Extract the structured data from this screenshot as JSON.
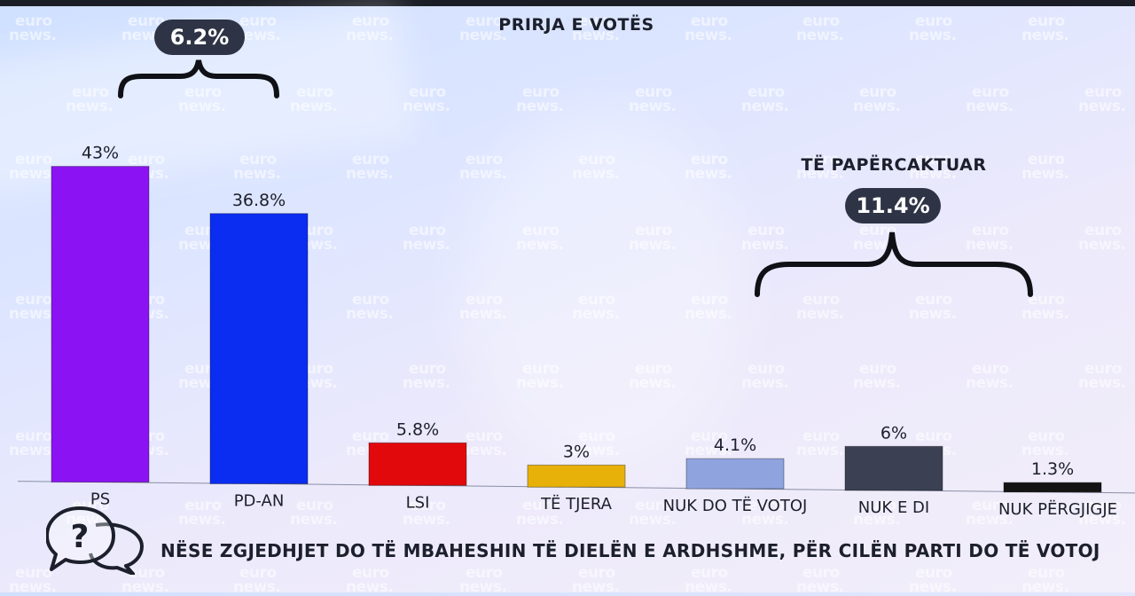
{
  "title": "PRIRJA E VOTËS",
  "watermark": {
    "line1": "euro",
    "line2": "news."
  },
  "question": "NËSE ZGJEDHJET DO TË MBAHESHIN TË DIELËN E ARDHSHME, PËR CILËN PARTI DO TË VOTOJ",
  "annotations": {
    "gap_label": "6.2%",
    "undecided_title": "TË PAPËRCAKTUAR",
    "undecided_value": "11.4%"
  },
  "icons": {
    "question": "question-speech-bubble-icon"
  },
  "chart_data": {
    "type": "bar",
    "title": "PRIRJA E VOTËS",
    "categories": [
      "PS",
      "PD-AN",
      "LSI",
      "TË TJERA",
      "NUK DO TË VOTOJ",
      "NUK E DI",
      "NUK PËRGJIGJE"
    ],
    "values": [
      43,
      36.8,
      5.8,
      3,
      4.1,
      6,
      1.3
    ],
    "value_labels": [
      "43%",
      "36.8%",
      "5.8%",
      "3%",
      "4.1%",
      "6%",
      "1.3%"
    ],
    "colors": [
      "#8b13f3",
      "#0b2df2",
      "#e1090c",
      "#e8b10a",
      "#8fa3df",
      "#3b4153",
      "#141414"
    ],
    "unit": "%",
    "grid": false,
    "legend": "none"
  }
}
